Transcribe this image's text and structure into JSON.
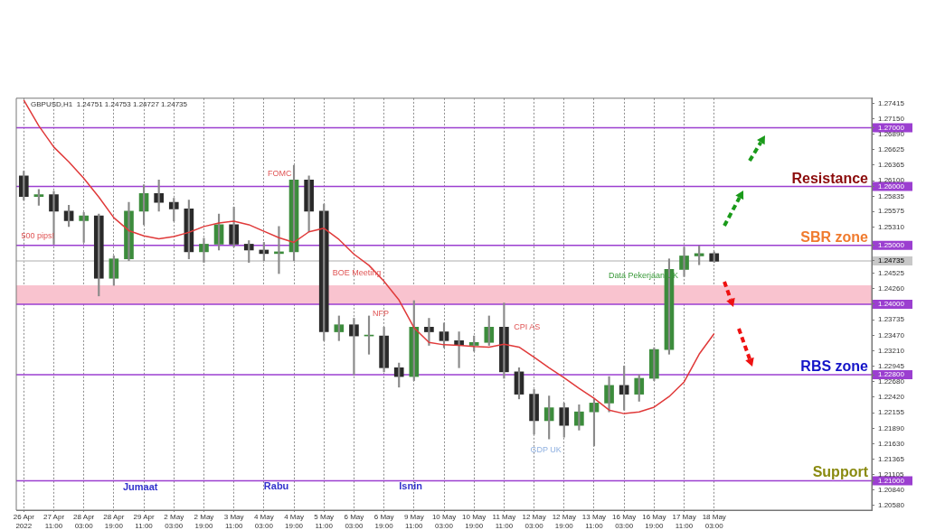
{
  "chart_data": {
    "type": "candlestick",
    "title": "GBPUSD,H1  1.24751 1.24753 1.24727 1.24735",
    "categories": [
      "26 Apr 2022",
      null,
      "27 Apr 11:00",
      null,
      "28 Apr 03:00",
      null,
      "28 Apr 19:00",
      null,
      "29 Apr 11:00",
      null,
      "2 May 03:00",
      null,
      "2 May 19:00",
      null,
      "3 May 11:00",
      null,
      "4 May 03:00",
      null,
      "4 May 19:00",
      null,
      "5 May 11:00",
      null,
      "6 May 03:00",
      null,
      "6 May 19:00",
      null,
      "9 May 11:00",
      null,
      "10 May 03:00",
      null,
      "10 May 19:00",
      null,
      "11 May 11:00",
      null,
      "12 May 03:00",
      null,
      "12 May 19:00",
      null,
      "13 May 11:00",
      null,
      "16 May 03:00",
      null,
      "16 May 19:00",
      null,
      "17 May 11:00",
      null,
      "18 May 03:00",
      null,
      null,
      null,
      null,
      null,
      null,
      null,
      null,
      null,
      null
    ],
    "ohlc": [
      [
        1.2618,
        1.2626,
        1.2577,
        1.2583
      ],
      [
        1.2583,
        1.2595,
        1.2568,
        1.2586
      ],
      [
        1.2586,
        1.2592,
        1.2502,
        1.2558
      ],
      [
        1.2558,
        1.2568,
        1.2532,
        1.2542
      ],
      [
        1.2542,
        1.2556,
        1.2505,
        1.255
      ],
      [
        1.255,
        1.2553,
        1.2414,
        1.2444
      ],
      [
        1.2444,
        1.2482,
        1.2432,
        1.2477
      ],
      [
        1.2477,
        1.2573,
        1.2474,
        1.2558
      ],
      [
        1.2558,
        1.2603,
        1.2535,
        1.2588
      ],
      [
        1.2588,
        1.2611,
        1.2558,
        1.2573
      ],
      [
        1.2573,
        1.258,
        1.2541,
        1.2562
      ],
      [
        1.2562,
        1.2577,
        1.2477,
        1.2489
      ],
      [
        1.2489,
        1.2512,
        1.2471,
        1.2502
      ],
      [
        1.2502,
        1.2553,
        1.2492,
        1.2535
      ],
      [
        1.2535,
        1.2565,
        1.2497,
        1.2502
      ],
      [
        1.2502,
        1.2508,
        1.2471,
        1.2492
      ],
      [
        1.2492,
        1.2505,
        1.2474,
        1.2486
      ],
      [
        1.2486,
        1.2532,
        1.2452,
        1.2489
      ],
      [
        1.2489,
        1.2636,
        1.2474,
        1.2611
      ],
      [
        1.2611,
        1.2618,
        1.2523,
        1.2558
      ],
      [
        1.2558,
        1.257,
        1.2338,
        1.2353
      ],
      [
        1.2353,
        1.238,
        1.2338,
        1.2365
      ],
      [
        1.2365,
        1.2376,
        1.228,
        1.2346
      ],
      [
        1.2346,
        1.238,
        1.2315,
        1.2346
      ],
      [
        1.2346,
        1.2361,
        1.2285,
        1.2292
      ],
      [
        1.2292,
        1.23,
        1.2259,
        1.2277
      ],
      [
        1.2277,
        1.2406,
        1.227,
        1.2361
      ],
      [
        1.2361,
        1.2376,
        1.233,
        1.2353
      ],
      [
        1.2353,
        1.2368,
        1.2326,
        1.2338
      ],
      [
        1.2338,
        1.2353,
        1.2292,
        1.233
      ],
      [
        1.233,
        1.2346,
        1.232,
        1.2335
      ],
      [
        1.2335,
        1.238,
        1.233,
        1.2361
      ],
      [
        1.2361,
        1.2402,
        1.2274,
        1.2285
      ],
      [
        1.2285,
        1.2292,
        1.2239,
        1.2247
      ],
      [
        1.2247,
        1.2255,
        1.2179,
        1.2202
      ],
      [
        1.2202,
        1.2244,
        1.2171,
        1.2224
      ],
      [
        1.2224,
        1.2232,
        1.2174,
        1.2194
      ],
      [
        1.2194,
        1.2229,
        1.2186,
        1.2217
      ],
      [
        1.2217,
        1.2239,
        1.2159,
        1.2232
      ],
      [
        1.2232,
        1.2277,
        1.2217,
        1.2262
      ],
      [
        1.2262,
        1.2295,
        1.222,
        1.2247
      ],
      [
        1.2247,
        1.228,
        1.2235,
        1.2274
      ],
      [
        1.2274,
        1.2326,
        1.227,
        1.2323
      ],
      [
        1.2323,
        1.2477,
        1.2315,
        1.2459
      ],
      [
        1.2459,
        1.2497,
        1.2447,
        1.2482
      ],
      [
        1.2482,
        1.2499,
        1.2467,
        1.2486
      ],
      [
        1.2486,
        1.2489,
        1.2471,
        1.2473
      ],
      null,
      null,
      null,
      null,
      null,
      null,
      null,
      null,
      null,
      null
    ],
    "series": [
      {
        "type": "line",
        "color": "#e03a3a",
        "values": [
          1.2747,
          1.2703,
          1.2667,
          1.2642,
          1.2614,
          1.2582,
          1.2547,
          1.2525,
          1.2516,
          1.2511,
          1.2515,
          1.2522,
          1.2532,
          1.2538,
          1.2541,
          1.2535,
          1.2524,
          1.2513,
          1.2505,
          1.2523,
          1.2529,
          1.251,
          1.2485,
          1.2466,
          1.2439,
          1.2407,
          1.236,
          1.2335,
          1.2331,
          1.233,
          1.2328,
          1.2327,
          1.2332,
          1.2327,
          1.231,
          1.2292,
          1.2275,
          1.2257,
          1.224,
          1.222,
          1.2214,
          1.2217,
          1.2225,
          1.2243,
          1.2268,
          1.2315,
          1.235,
          null,
          null,
          null,
          null,
          null,
          null,
          null,
          null,
          null,
          null
        ]
      }
    ],
    "ylim": [
      1.205,
      1.275
    ],
    "yticks": [
      {
        "value": 1.2058,
        "label": "1.20580"
      },
      {
        "value": 1.2084,
        "label": "1.20840"
      },
      {
        "value": 1.21,
        "label": "1.21000"
      },
      {
        "value": 1.21105,
        "label": "1.21105"
      },
      {
        "value": 1.21365,
        "label": "1.21365"
      },
      {
        "value": 1.2163,
        "label": "1.21630"
      },
      {
        "value": 1.2189,
        "label": "1.21890"
      },
      {
        "value": 1.22155,
        "label": "1.22155"
      },
      {
        "value": 1.2242,
        "label": "1.22420"
      },
      {
        "value": 1.2268,
        "label": "1.22680"
      },
      {
        "value": 1.228,
        "label": "1.22800"
      },
      {
        "value": 1.22945,
        "label": "1.22945"
      },
      {
        "value": 1.2321,
        "label": "1.23210"
      },
      {
        "value": 1.2347,
        "label": "1.23470"
      },
      {
        "value": 1.23735,
        "label": "1.23735"
      },
      {
        "value": 1.24,
        "label": "1.24000"
      },
      {
        "value": 1.2426,
        "label": "1.24260"
      },
      {
        "value": 1.24525,
        "label": "1.24525"
      },
      {
        "value": 1.24735,
        "label": "1.24735"
      },
      {
        "value": 1.25,
        "label": "1.25000"
      },
      {
        "value": 1.2531,
        "label": "1.25310"
      },
      {
        "value": 1.25575,
        "label": "1.25575"
      },
      {
        "value": 1.25835,
        "label": "1.25835"
      },
      {
        "value": 1.26,
        "label": "1.26000"
      },
      {
        "value": 1.261,
        "label": "1.26100"
      },
      {
        "value": 1.26365,
        "label": "1.26365"
      },
      {
        "value": 1.26625,
        "label": "1.26625"
      },
      {
        "value": 1.2689,
        "label": "1.26890"
      },
      {
        "value": 1.27,
        "label": "1.27000"
      },
      {
        "value": 1.2715,
        "label": "1.27150"
      },
      {
        "value": 1.27415,
        "label": "1.27415"
      }
    ],
    "grid": "x",
    "ref_lines": [
      {
        "axis": "y",
        "value": 1.27,
        "color": "#9b3fd0"
      },
      {
        "axis": "y",
        "value": 1.26,
        "label": "Resistance",
        "color": "#9b3fd0"
      },
      {
        "axis": "y",
        "value": 1.25,
        "label": "SBR zone",
        "color": "#9b3fd0"
      },
      {
        "axis": "y",
        "value": 1.24735,
        "color": "#c8c8c8"
      },
      {
        "axis": "y",
        "value": 1.24,
        "color": "#9b3fd0"
      },
      {
        "axis": "y",
        "value": 1.228,
        "label": "RBS zone",
        "color": "#9b3fd0"
      },
      {
        "axis": "y",
        "value": 1.21,
        "label": "Support",
        "color": "#9b3fd0"
      }
    ],
    "bands": [
      {
        "axis": "y",
        "from": 1.24,
        "to": 1.2432,
        "color": "#f9c3cf"
      }
    ],
    "annotations": [
      "500 pips!",
      "FOMC",
      "BOE Meeting",
      "NFP",
      "CPI AS",
      "GDP UK",
      "Data Pekerjaan UK",
      "Jumaat",
      "Rabu",
      "Isnin"
    ]
  }
}
